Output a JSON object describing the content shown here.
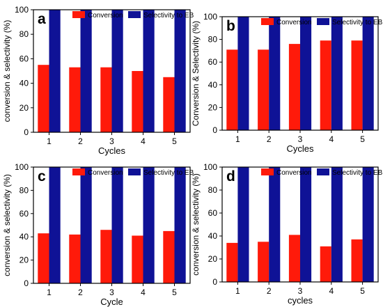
{
  "colors": {
    "conversion": "#ff1a0a",
    "selectivity": "#0f1296"
  },
  "chart_data": [
    {
      "type": "bar",
      "panel_label": "a",
      "categories": [
        "1",
        "2",
        "3",
        "4",
        "5"
      ],
      "series": [
        {
          "name": "Conversion",
          "values": [
            55,
            53,
            53,
            50,
            45
          ]
        },
        {
          "name": "Selectivity to EB",
          "values": [
            100,
            100,
            100,
            100,
            100
          ]
        }
      ],
      "xlabel": "Cycles",
      "ylabel": "conversion & selectivity (%)",
      "ylim": [
        0,
        100
      ],
      "yticks": [
        0,
        20,
        40,
        60,
        80,
        100
      ],
      "grid": false,
      "legend": "top"
    },
    {
      "type": "bar",
      "panel_label": "b",
      "categories": [
        "1",
        "2",
        "3",
        "4",
        "5"
      ],
      "series": [
        {
          "name": "Conversion",
          "values": [
            71,
            71,
            76,
            79,
            79
          ]
        },
        {
          "name": "Selectivity to EB",
          "values": [
            100,
            100,
            100,
            100,
            100
          ]
        }
      ],
      "xlabel": "Cycles",
      "ylabel": "Conversion & Selectivity (%)",
      "ylim": [
        0,
        100
      ],
      "yticks": [
        0,
        20,
        40,
        60,
        80,
        100
      ],
      "grid": false,
      "legend": "top"
    },
    {
      "type": "bar",
      "panel_label": "c",
      "categories": [
        "1",
        "2",
        "3",
        "4",
        "5"
      ],
      "series": [
        {
          "name": "Conversion",
          "values": [
            43,
            42,
            46,
            41,
            45
          ]
        },
        {
          "name": "Selectivity to EB",
          "values": [
            100,
            100,
            100,
            100,
            100
          ]
        }
      ],
      "xlabel": "Cycle",
      "ylabel": "conversion & selectivity (%)",
      "ylim": [
        0,
        100
      ],
      "yticks": [
        0,
        20,
        40,
        60,
        80,
        100
      ],
      "grid": false,
      "legend": "top"
    },
    {
      "type": "bar",
      "panel_label": "d",
      "categories": [
        "1",
        "2",
        "3",
        "4",
        "5"
      ],
      "series": [
        {
          "name": "Conversion",
          "values": [
            34,
            35,
            41,
            31,
            37
          ]
        },
        {
          "name": "Selectivity to EB",
          "values": [
            100,
            100,
            100,
            100,
            100
          ]
        }
      ],
      "xlabel": "cycles",
      "ylabel": "conversion & selectivity (%)",
      "ylim": [
        0,
        100
      ],
      "yticks": [
        0,
        20,
        40,
        60,
        80,
        100
      ],
      "grid": false,
      "legend": "top"
    }
  ]
}
